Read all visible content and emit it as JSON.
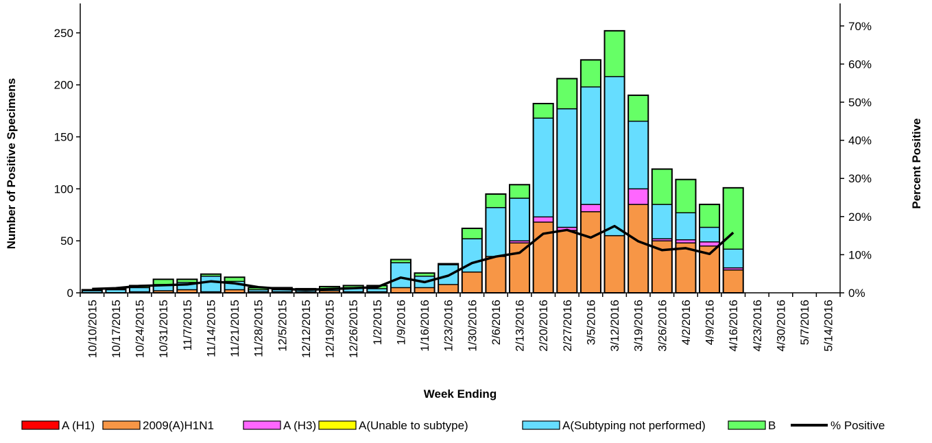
{
  "chart_data": {
    "type": "bar",
    "stacked": true,
    "title": "",
    "xlabel": "Week Ending",
    "ylabel": "Number of  Positive Specimens",
    "y2label": "Percent Positive",
    "ylim": [
      0,
      275
    ],
    "y2lim": [
      0,
      0.75
    ],
    "yticks": [
      0,
      50,
      100,
      150,
      200,
      250
    ],
    "y2ticks": [
      "0%",
      "10%",
      "20%",
      "30%",
      "40%",
      "50%",
      "60%",
      "70%"
    ],
    "legend_position": "bottom",
    "categories": [
      "10/10/2015",
      "10/17/2015",
      "10/24/2015",
      "10/31/2015",
      "11/7/2015",
      "11/14/2015",
      "11/21/2015",
      "11/28/2015",
      "12/5/2015",
      "12/12/2015",
      "12/19/2015",
      "12/26/2015",
      "1/2/2015",
      "1/9/2016",
      "1/16/2016",
      "1/23/2016",
      "1/30/2016",
      "2/6/2016",
      "2/13/2016",
      "2/20/2016",
      "2/27/2016",
      "3/5/2016",
      "3/12/2016",
      "3/19/2016",
      "3/26/2016",
      "4/2/2016",
      "4/9/2016",
      "4/16/2016",
      "4/23/2016",
      "4/30/2016",
      "5/7/2016",
      "5/14/2016"
    ],
    "series": [
      {
        "name": "A (H1)",
        "color": "#ff0000",
        "values": [
          0,
          0,
          0,
          0,
          0,
          0,
          0,
          0,
          0,
          0,
          0,
          0,
          0,
          0,
          0,
          0,
          0,
          0,
          0,
          0,
          0,
          0,
          0,
          0,
          0,
          0,
          0,
          0,
          0,
          0,
          0,
          0
        ]
      },
      {
        "name": "2009(A)H1N1",
        "color": "#f79646",
        "values": [
          0,
          0,
          1,
          2,
          3,
          1,
          3,
          1,
          1,
          1,
          2,
          1,
          1,
          5,
          5,
          8,
          20,
          35,
          48,
          68,
          60,
          78,
          55,
          85,
          50,
          48,
          45,
          22,
          0,
          0,
          0,
          0
        ]
      },
      {
        "name": "A (H3)",
        "color": "#ff66ff",
        "values": [
          0,
          0,
          0,
          0,
          0,
          0,
          0,
          0,
          0,
          0,
          0,
          0,
          0,
          0,
          0,
          0,
          0,
          0,
          2,
          5,
          3,
          7,
          0,
          15,
          2,
          3,
          4,
          2,
          0,
          0,
          0,
          0
        ]
      },
      {
        "name": "A(Unable to subtype)",
        "color": "#ffff00",
        "values": [
          0,
          0,
          0,
          0,
          0,
          0,
          0,
          0,
          0,
          0,
          0,
          0,
          0,
          0,
          0,
          0,
          0,
          0,
          0,
          0,
          0,
          0,
          0,
          0,
          0,
          0,
          0,
          0,
          0,
          0,
          0,
          0
        ]
      },
      {
        "name": "A(Subtyping not performed)",
        "color": "#66ddff",
        "values": [
          2,
          3,
          4,
          6,
          7,
          15,
          8,
          2,
          2,
          2,
          2,
          4,
          3,
          24,
          11,
          19,
          32,
          47,
          41,
          95,
          114,
          113,
          153,
          65,
          33,
          26,
          14,
          18,
          0,
          0,
          0,
          0
        ]
      },
      {
        "name": "B",
        "color": "#66ff66",
        "values": [
          1,
          1,
          2,
          5,
          3,
          2,
          4,
          2,
          2,
          1,
          2,
          2,
          3,
          3,
          3,
          1,
          10,
          13,
          13,
          14,
          29,
          26,
          44,
          25,
          34,
          32,
          22,
          59,
          0,
          0,
          0,
          0
        ]
      }
    ],
    "line_series": {
      "name": "% Positive",
      "color": "#000000",
      "values": [
        0.01,
        0.012,
        0.018,
        0.02,
        0.022,
        0.03,
        0.025,
        0.015,
        0.01,
        0.008,
        0.01,
        0.012,
        0.015,
        0.04,
        0.028,
        0.045,
        0.078,
        0.095,
        0.105,
        0.155,
        0.165,
        0.145,
        0.175,
        0.135,
        0.112,
        0.117,
        0.102,
        0.158,
        null,
        null,
        null,
        null
      ]
    }
  }
}
